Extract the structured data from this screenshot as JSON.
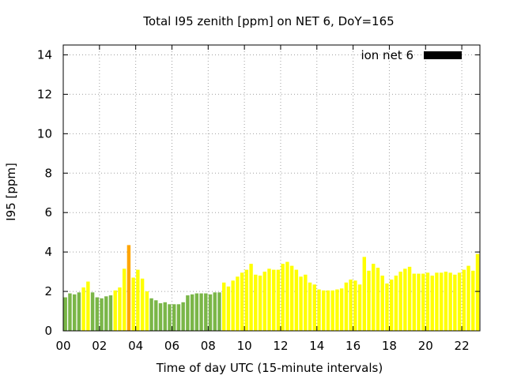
{
  "chart_data": {
    "type": "bar",
    "title": "Total I95 zenith [ppm] on NET 6, DoY=165",
    "xlabel": "Time of day UTC (15-minute intervals)",
    "ylabel": "I95 [ppm]",
    "xlim": [
      0,
      23
    ],
    "ylim": [
      0,
      14.5
    ],
    "x_ticks": [
      "00",
      "02",
      "04",
      "06",
      "08",
      "10",
      "12",
      "14",
      "16",
      "18",
      "20",
      "22"
    ],
    "y_ticks": [
      "0",
      "2",
      "4",
      "6",
      "8",
      "10",
      "12",
      "14"
    ],
    "grid": true,
    "legend_position": "top-right",
    "series": [
      {
        "name": "ion net 6",
        "color": "#000000",
        "bar_interval_hours": 0.25,
        "values": [
          1.7,
          1.9,
          1.85,
          1.95,
          2.2,
          2.5,
          1.95,
          1.7,
          1.65,
          1.75,
          1.8,
          2.05,
          2.2,
          3.15,
          4.35,
          2.7,
          3.1,
          2.65,
          2.0,
          1.65,
          1.55,
          1.4,
          1.45,
          1.35,
          1.35,
          1.35,
          1.45,
          1.8,
          1.85,
          1.9,
          1.9,
          1.9,
          1.85,
          1.95,
          1.95,
          2.45,
          2.25,
          2.55,
          2.75,
          2.95,
          3.1,
          3.4,
          2.85,
          2.8,
          3.0,
          3.15,
          3.1,
          3.1,
          3.4,
          3.5,
          3.3,
          3.1,
          2.75,
          2.85,
          2.45,
          2.35,
          2.1,
          2.05,
          2.05,
          2.05,
          2.1,
          2.15,
          2.45,
          2.6,
          2.55,
          2.35,
          3.75,
          3.05,
          3.4,
          3.2,
          2.8,
          2.4,
          2.6,
          2.8,
          3.0,
          3.15,
          3.25,
          2.9,
          2.9,
          2.9,
          2.95,
          2.8,
          2.95,
          2.95,
          3.0,
          2.95,
          2.85,
          2.95,
          3.1,
          3.3,
          3.05,
          3.9
        ],
        "bar_colors": [
          "#7ab648",
          "#7ab648",
          "#7ab648",
          "#7ab648",
          "#ffff00",
          "#ffff00",
          "#7ab648",
          "#7ab648",
          "#7ab648",
          "#7ab648",
          "#7ab648",
          "#ffff00",
          "#ffff00",
          "#ffff00",
          "#ffa500",
          "#ffff00",
          "#ffff00",
          "#ffff00",
          "#ffff00",
          "#7ab648",
          "#7ab648",
          "#7ab648",
          "#7ab648",
          "#7ab648",
          "#7ab648",
          "#7ab648",
          "#7ab648",
          "#7ab648",
          "#7ab648",
          "#7ab648",
          "#7ab648",
          "#7ab648",
          "#7ab648",
          "#7ab648",
          "#7ab648",
          "#ffff00",
          "#ffff00",
          "#ffff00",
          "#ffff00",
          "#ffff00",
          "#ffff00",
          "#ffff00",
          "#ffff00",
          "#ffff00",
          "#ffff00",
          "#ffff00",
          "#ffff00",
          "#ffff00",
          "#ffff00",
          "#ffff00",
          "#ffff00",
          "#ffff00",
          "#ffff00",
          "#ffff00",
          "#ffff00",
          "#ffff00",
          "#ffff00",
          "#ffff00",
          "#ffff00",
          "#ffff00",
          "#ffff00",
          "#ffff00",
          "#ffff00",
          "#ffff00",
          "#ffff00",
          "#ffff00",
          "#ffff00",
          "#ffff00",
          "#ffff00",
          "#ffff00",
          "#ffff00",
          "#ffff00",
          "#ffff00",
          "#ffff00",
          "#ffff00",
          "#ffff00",
          "#ffff00",
          "#ffff00",
          "#ffff00",
          "#ffff00",
          "#ffff00",
          "#ffff00",
          "#ffff00",
          "#ffff00",
          "#ffff00",
          "#ffff00",
          "#ffff00",
          "#ffff00",
          "#ffff00",
          "#ffff00",
          "#ffff00",
          "#ffff00"
        ]
      }
    ]
  }
}
